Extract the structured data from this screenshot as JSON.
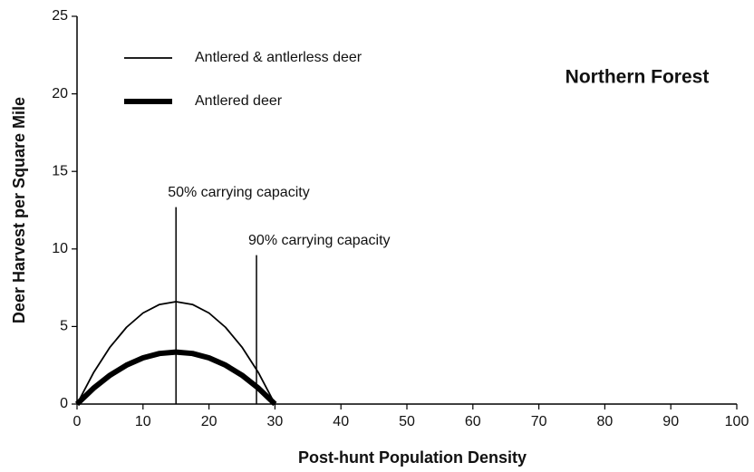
{
  "chart_data": {
    "type": "line",
    "title": "Northern Forest",
    "xlabel": "Post-hunt Population Density",
    "ylabel": "Deer Harvest per Square Mile",
    "x": [
      0,
      2.5,
      5,
      7.5,
      10,
      12.5,
      15,
      17.5,
      20,
      22.5,
      25,
      27.5,
      30
    ],
    "series": [
      {
        "name": "Antlered & antlerless deer",
        "color": "#000000",
        "values": [
          0,
          2.02,
          3.67,
          4.95,
          5.87,
          6.42,
          6.6,
          6.42,
          5.87,
          4.95,
          3.67,
          2.02,
          0
        ]
      },
      {
        "name": "Antlered deer",
        "color": "#000000",
        "values": [
          0,
          1.02,
          1.86,
          2.51,
          2.98,
          3.26,
          3.35,
          3.26,
          2.98,
          2.51,
          1.86,
          1.02,
          0
        ]
      }
    ],
    "reference_lines": [
      {
        "x": 15,
        "top": 12.7,
        "label": "50% carrying capacity"
      },
      {
        "x": 27.2,
        "top": 9.6,
        "label": "90% carrying capacity"
      }
    ],
    "xlim": [
      0,
      100
    ],
    "xticks": [
      0,
      10,
      20,
      30,
      40,
      50,
      60,
      70,
      80,
      90,
      100
    ],
    "ylim": [
      0,
      25
    ],
    "yticks": [
      0,
      5,
      10,
      15,
      20,
      25
    ],
    "grid": false,
    "legend": "upper left"
  }
}
